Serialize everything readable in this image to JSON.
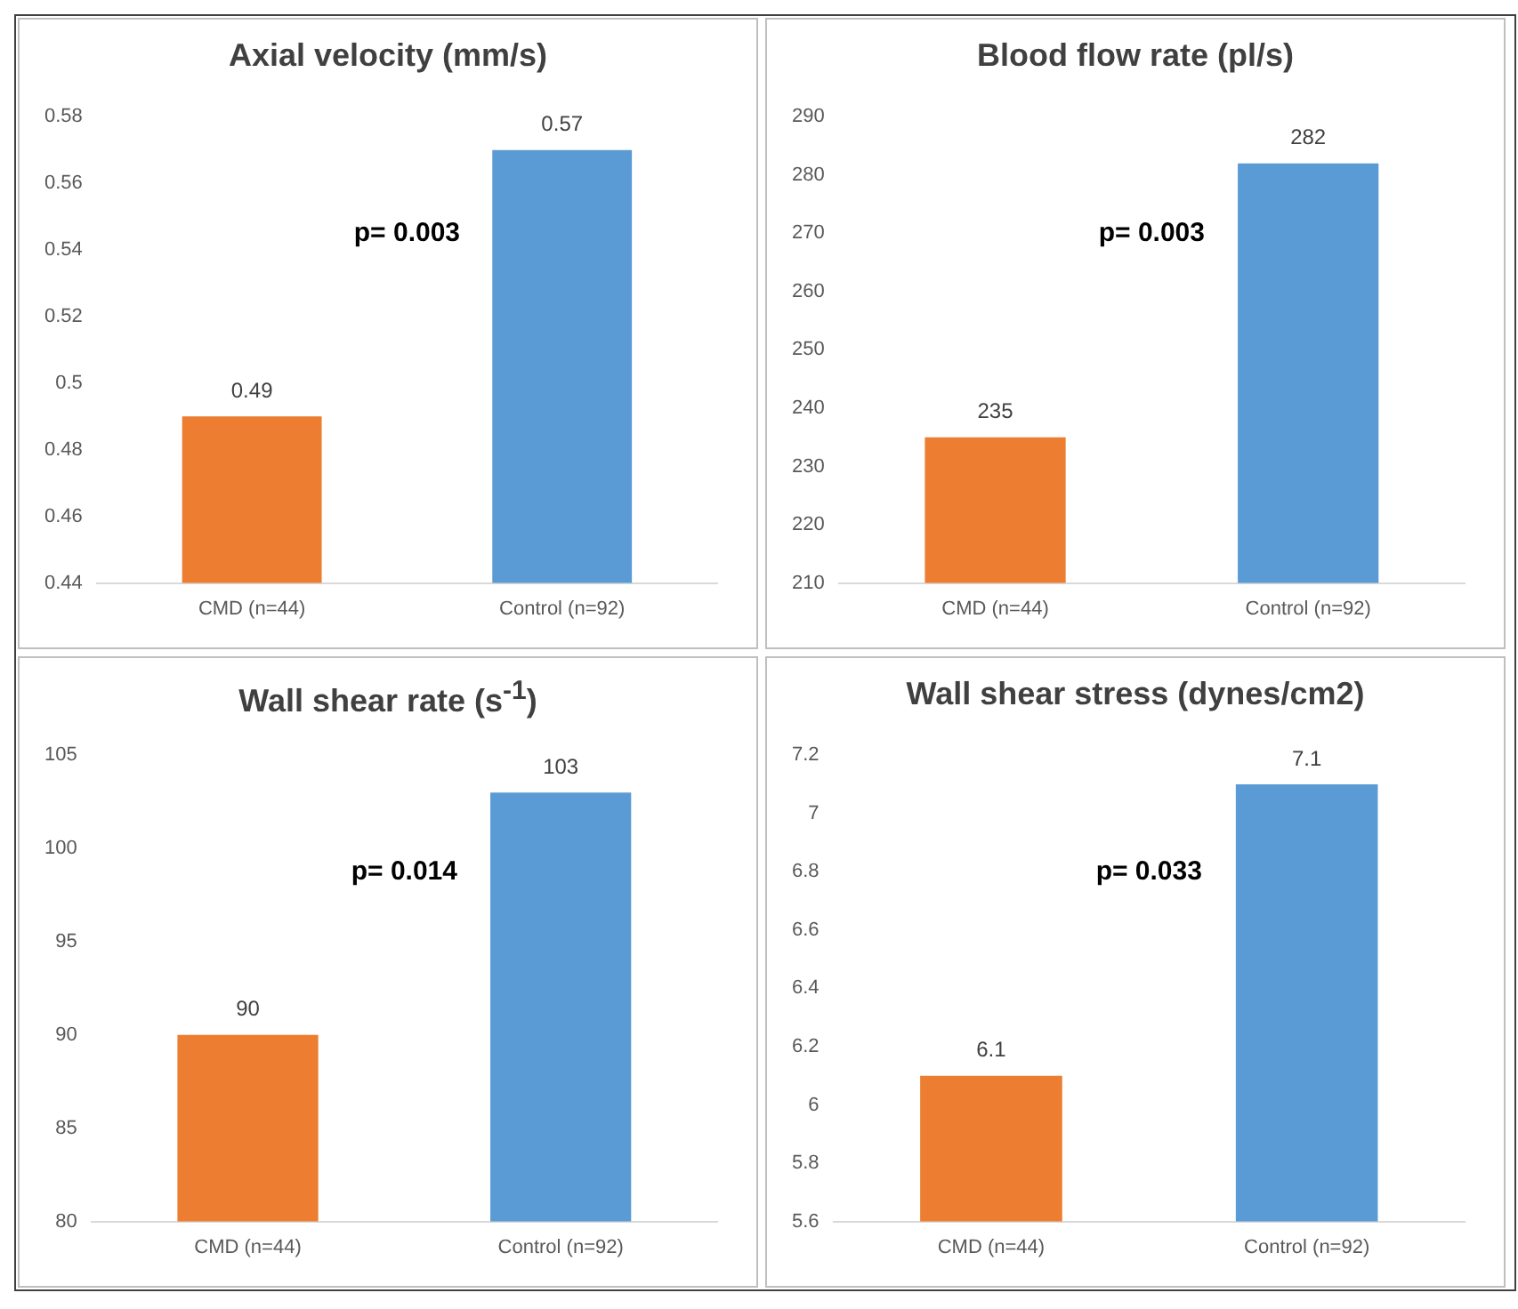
{
  "chart_data": [
    {
      "type": "bar",
      "title": "Axial velocity (mm/s)",
      "categories": [
        "CMD (n=44)",
        "Control (n=92)"
      ],
      "values": [
        0.49,
        0.57
      ],
      "colors": [
        "#ed7d31",
        "#5b9bd5"
      ],
      "ylim": [
        0.44,
        0.58
      ],
      "yticks": [
        0.44,
        0.46,
        0.48,
        0.5,
        0.52,
        0.54,
        0.56,
        0.58
      ],
      "data_labels": true,
      "grid": false,
      "legend": false,
      "annotations": [
        "p= 0.003"
      ]
    },
    {
      "type": "bar",
      "title": "Blood flow rate (pl/s)",
      "categories": [
        "CMD (n=44)",
        "Control (n=92)"
      ],
      "values": [
        235,
        282
      ],
      "colors": [
        "#ed7d31",
        "#5b9bd5"
      ],
      "ylim": [
        210,
        290
      ],
      "yticks": [
        210,
        220,
        230,
        240,
        250,
        260,
        270,
        280,
        290
      ],
      "data_labels": true,
      "grid": false,
      "legend": false,
      "annotations": [
        "p= 0.003"
      ]
    },
    {
      "type": "bar",
      "title": "Wall shear rate (s$^{-1}$)",
      "categories": [
        "CMD (n=44)",
        "Control (n=92)"
      ],
      "values": [
        90,
        103
      ],
      "colors": [
        "#ed7d31",
        "#5b9bd5"
      ],
      "ylim": [
        80,
        105
      ],
      "yticks": [
        80,
        85,
        90,
        95,
        100,
        105
      ],
      "data_labels": true,
      "grid": false,
      "legend": false,
      "annotations": [
        "p= 0.014"
      ]
    },
    {
      "type": "bar",
      "title": "Wall shear stress (dynes/cm2)",
      "categories": [
        "CMD (n=44)",
        "Control (n=92)"
      ],
      "values": [
        6.1,
        7.1
      ],
      "colors": [
        "#ed7d31",
        "#5b9bd5"
      ],
      "ylim": [
        5.6,
        7.2
      ],
      "yticks": [
        5.6,
        5.8,
        6,
        6.2,
        6.4,
        6.6,
        6.8,
        7,
        7.2
      ],
      "data_labels": true,
      "grid": false,
      "legend": false,
      "annotations": [
        "p= 0.033"
      ]
    }
  ]
}
